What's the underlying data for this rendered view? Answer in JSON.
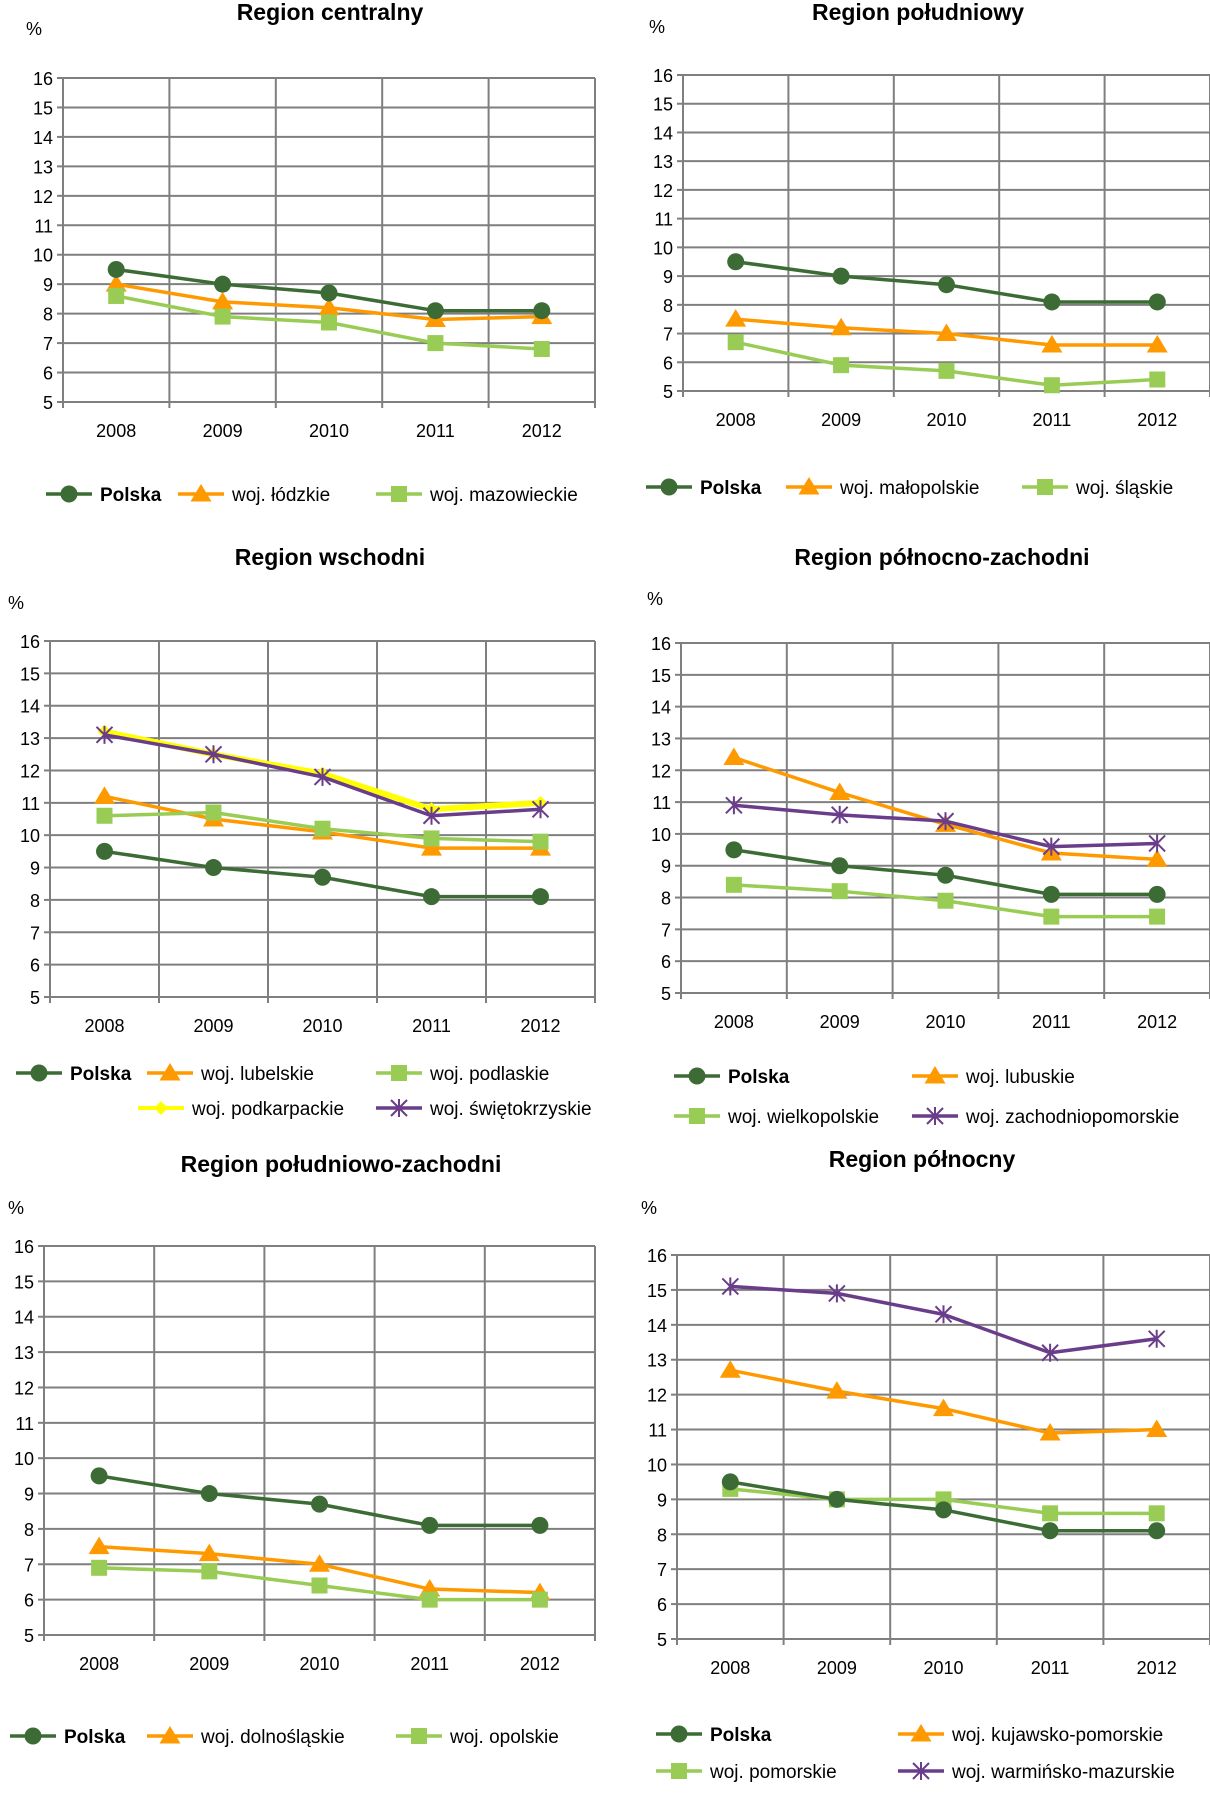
{
  "colors": {
    "polska": "#3d6b35",
    "orange": "#ff9900",
    "green": "#99cc55",
    "yellow": "#ffff00",
    "purple": "#6a3d8a",
    "grid": "#7f7f7f"
  },
  "chart_data": [
    {
      "type": "line",
      "title": "Region centralny",
      "ylabel": "%",
      "x": [
        "2008",
        "2009",
        "2010",
        "2011",
        "2012"
      ],
      "ylim": [
        5,
        16
      ],
      "yticks": [
        5,
        6,
        7,
        8,
        9,
        10,
        11,
        12,
        13,
        14,
        15,
        16
      ],
      "grid": true,
      "legend_position": "bottom",
      "series": [
        {
          "name": "Polska",
          "marker": "circle",
          "color": "#3d6b35",
          "bold": true,
          "values": [
            9.5,
            9.0,
            8.7,
            8.1,
            8.1
          ]
        },
        {
          "name": "woj. łódzkie",
          "marker": "triangle",
          "color": "#ff9900",
          "values": [
            9.0,
            8.4,
            8.2,
            7.8,
            7.9
          ]
        },
        {
          "name": "woj. mazowieckie",
          "marker": "square",
          "color": "#99cc55",
          "values": [
            8.6,
            7.9,
            7.7,
            7.0,
            6.8
          ]
        }
      ]
    },
    {
      "type": "line",
      "title": "Region południowy",
      "ylabel": "%",
      "x": [
        "2008",
        "2009",
        "2010",
        "2011",
        "2012"
      ],
      "ylim": [
        5,
        16
      ],
      "yticks": [
        5,
        6,
        7,
        8,
        9,
        10,
        11,
        12,
        13,
        14,
        15,
        16
      ],
      "grid": true,
      "legend_position": "bottom",
      "series": [
        {
          "name": "Polska",
          "marker": "circle",
          "color": "#3d6b35",
          "bold": true,
          "values": [
            9.5,
            9.0,
            8.7,
            8.1,
            8.1
          ]
        },
        {
          "name": "woj. małopolskie",
          "marker": "triangle",
          "color": "#ff9900",
          "values": [
            7.5,
            7.2,
            7.0,
            6.6,
            6.6
          ]
        },
        {
          "name": "woj. śląskie",
          "marker": "square",
          "color": "#99cc55",
          "values": [
            6.7,
            5.9,
            5.7,
            5.2,
            5.4
          ]
        }
      ]
    },
    {
      "type": "line",
      "title": "Region wschodni",
      "ylabel": "%",
      "x": [
        "2008",
        "2009",
        "2010",
        "2011",
        "2012"
      ],
      "ylim": [
        5,
        16
      ],
      "yticks": [
        5,
        6,
        7,
        8,
        9,
        10,
        11,
        12,
        13,
        14,
        15,
        16
      ],
      "grid": true,
      "legend_position": "bottom",
      "series": [
        {
          "name": "Polska",
          "marker": "circle",
          "color": "#3d6b35",
          "bold": true,
          "values": [
            9.5,
            9.0,
            8.7,
            8.1,
            8.1
          ]
        },
        {
          "name": "woj. lubelskie",
          "marker": "triangle",
          "color": "#ff9900",
          "values": [
            11.2,
            10.5,
            10.1,
            9.6,
            9.6
          ]
        },
        {
          "name": "woj. podlaskie",
          "marker": "square",
          "color": "#99cc55",
          "values": [
            10.6,
            10.7,
            10.2,
            9.9,
            9.8
          ]
        },
        {
          "name": "woj. podkarpackie",
          "marker": "diamond",
          "color": "#ffff00",
          "width": 6,
          "values": [
            13.2,
            12.5,
            11.9,
            10.8,
            11.0
          ]
        },
        {
          "name": "woj. świętokrzyskie",
          "marker": "star",
          "color": "#6a3d8a",
          "values": [
            13.1,
            12.5,
            11.8,
            10.6,
            10.8
          ]
        }
      ]
    },
    {
      "type": "line",
      "title": "Region północno-zachodni",
      "ylabel": "%",
      "x": [
        "2008",
        "2009",
        "2010",
        "2011",
        "2012"
      ],
      "ylim": [
        5,
        16
      ],
      "yticks": [
        5,
        6,
        7,
        8,
        9,
        10,
        11,
        12,
        13,
        14,
        15,
        16
      ],
      "grid": true,
      "legend_position": "bottom",
      "series": [
        {
          "name": "Polska",
          "marker": "circle",
          "color": "#3d6b35",
          "bold": true,
          "values": [
            9.5,
            9.0,
            8.7,
            8.1,
            8.1
          ]
        },
        {
          "name": "woj. lubuskie",
          "marker": "triangle",
          "color": "#ff9900",
          "values": [
            12.4,
            11.3,
            10.3,
            9.4,
            9.2
          ]
        },
        {
          "name": "woj. wielkopolskie",
          "marker": "square",
          "color": "#99cc55",
          "values": [
            8.4,
            8.2,
            7.9,
            7.4,
            7.4
          ]
        },
        {
          "name": "woj. zachodniopomorskie",
          "marker": "star",
          "color": "#6a3d8a",
          "values": [
            10.9,
            10.6,
            10.4,
            9.6,
            9.7
          ]
        }
      ]
    },
    {
      "type": "line",
      "title": "Region południowo-zachodni",
      "ylabel": "%",
      "x": [
        "2008",
        "2009",
        "2010",
        "2011",
        "2012"
      ],
      "ylim": [
        5,
        16
      ],
      "yticks": [
        5,
        6,
        7,
        8,
        9,
        10,
        11,
        12,
        13,
        14,
        15,
        16
      ],
      "grid": true,
      "legend_position": "bottom",
      "series": [
        {
          "name": "Polska",
          "marker": "circle",
          "color": "#3d6b35",
          "bold": true,
          "values": [
            9.5,
            9.0,
            8.7,
            8.1,
            8.1
          ]
        },
        {
          "name": "woj. dolnośląskie",
          "marker": "triangle",
          "color": "#ff9900",
          "values": [
            7.5,
            7.3,
            7.0,
            6.3,
            6.2
          ]
        },
        {
          "name": "woj. opolskie",
          "marker": "square",
          "color": "#99cc55",
          "values": [
            6.9,
            6.8,
            6.4,
            6.0,
            6.0
          ]
        }
      ]
    },
    {
      "type": "line",
      "title": "Region północny",
      "ylabel": "%",
      "x": [
        "2008",
        "2009",
        "2010",
        "2011",
        "2012"
      ],
      "ylim": [
        5,
        16
      ],
      "yticks": [
        5,
        6,
        7,
        8,
        9,
        10,
        11,
        12,
        13,
        14,
        15,
        16
      ],
      "grid": true,
      "legend_position": "bottom",
      "series": [
        {
          "name": "Polska",
          "marker": "circle",
          "color": "#3d6b35",
          "bold": true,
          "values": [
            9.5,
            9.0,
            8.7,
            8.1,
            8.1
          ]
        },
        {
          "name": "woj. kujawsko-pomorskie",
          "marker": "triangle",
          "color": "#ff9900",
          "values": [
            12.7,
            12.1,
            11.6,
            10.9,
            11.0
          ]
        },
        {
          "name": "woj. pomorskie",
          "marker": "square",
          "color": "#99cc55",
          "values": [
            9.3,
            9.0,
            9.0,
            8.6,
            8.6
          ]
        },
        {
          "name": "woj. warmińsko-mazurskie",
          "marker": "star",
          "color": "#6a3d8a",
          "values": [
            15.1,
            14.9,
            14.3,
            13.2,
            13.6
          ]
        }
      ]
    }
  ]
}
